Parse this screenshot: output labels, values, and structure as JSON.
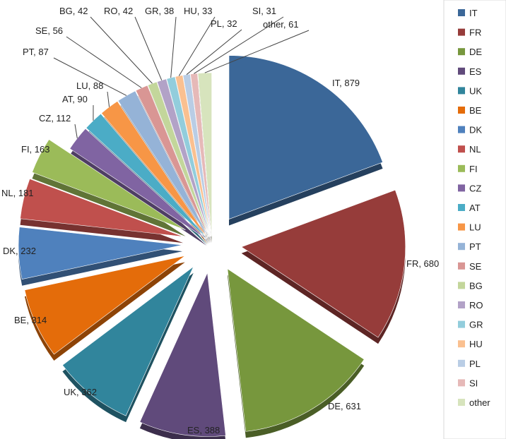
{
  "chart_data": {
    "type": "pie",
    "title": "",
    "legend_position": "right",
    "slices": [
      {
        "label": "IT",
        "value": 879,
        "color": "#3B6798"
      },
      {
        "label": "FR",
        "value": 680,
        "color": "#963C3A"
      },
      {
        "label": "DE",
        "value": 631,
        "color": "#77973D"
      },
      {
        "label": "ES",
        "value": 388,
        "color": "#604A7B"
      },
      {
        "label": "UK",
        "value": 362,
        "color": "#31859C"
      },
      {
        "label": "BE",
        "value": 314,
        "color": "#E46C0A"
      },
      {
        "label": "DK",
        "value": 232,
        "color": "#4F81BD"
      },
      {
        "label": "NL",
        "value": 181,
        "color": "#C0504D"
      },
      {
        "label": "FI",
        "value": 163,
        "color": "#9BBB59"
      },
      {
        "label": "CZ",
        "value": 112,
        "color": "#8064A2"
      },
      {
        "label": "AT",
        "value": 90,
        "color": "#4BACC6"
      },
      {
        "label": "LU",
        "value": 88,
        "color": "#F79646"
      },
      {
        "label": "PT",
        "value": 87,
        "color": "#95B3D7"
      },
      {
        "label": "SE",
        "value": 56,
        "color": "#D99694"
      },
      {
        "label": "BG",
        "value": 42,
        "color": "#C3D69B"
      },
      {
        "label": "RO",
        "value": 42,
        "color": "#B2A2C7"
      },
      {
        "label": "GR",
        "value": 38,
        "color": "#92CDDC"
      },
      {
        "label": "HU",
        "value": 33,
        "color": "#FAC090"
      },
      {
        "label": "PL",
        "value": 32,
        "color": "#B9CDE5"
      },
      {
        "label": "SI",
        "value": 31,
        "color": "#E6B9B8"
      },
      {
        "label": "other",
        "value": 61,
        "color": "#D7E4BD"
      }
    ]
  }
}
